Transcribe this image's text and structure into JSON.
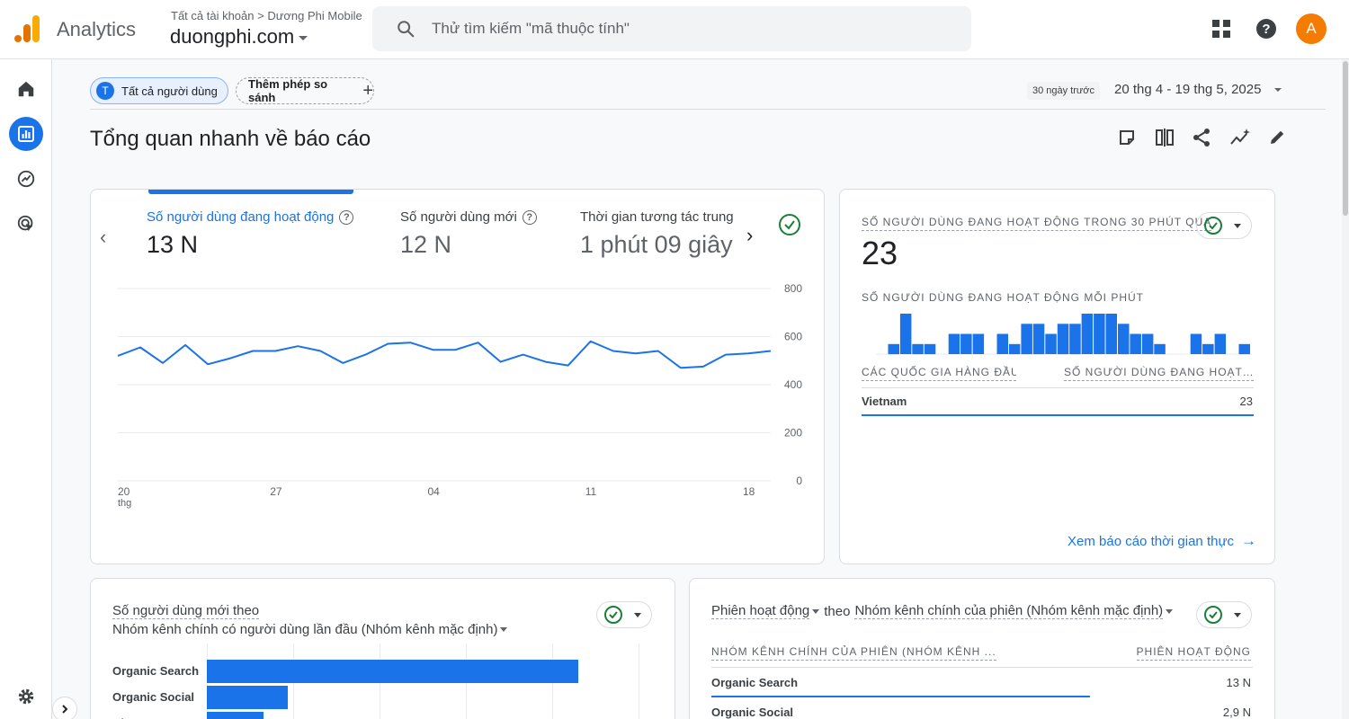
{
  "app": {
    "brand": "Analytics",
    "breadcrumb": "Tất cả tài khoản > Dương Phi Mobile",
    "property": "duongphi.com",
    "search_placeholder": "Thử tìm kiếm \"mã thuộc tính\"",
    "avatar_letter": "A",
    "accent": "#1a73e8",
    "icons": [
      "analytics-logo-icon",
      "search-icon",
      "apps-grid-icon",
      "help-icon"
    ]
  },
  "rail": {
    "items": [
      "home-icon",
      "reports-icon",
      "explore-icon",
      "advertising-icon",
      "settings-icon"
    ],
    "active": "reports-icon"
  },
  "filters": {
    "segment_letter": "T",
    "segment_label": "Tất cả người dùng",
    "compare_label": "Thêm phép so sánh",
    "date_badge": "30 ngày trước",
    "date_range": "20 thg 4 - 19 thg 5, 2025"
  },
  "page": {
    "title": "Tổng quan nhanh về báo cáo",
    "tools": [
      "edit-comparison-icon",
      "compare-columns-icon",
      "share-icon",
      "insights-icon",
      "pencil-icon"
    ]
  },
  "overview": {
    "metrics": [
      {
        "label": "Số người dùng đang hoạt động",
        "value": "13 N",
        "active": true
      },
      {
        "label": "Số người dùng mới",
        "value": "12 N",
        "active": false
      },
      {
        "label": "Thời gian tương tác trung",
        "value": "1 phút 09 giây",
        "active": false
      }
    ]
  },
  "chart_data": [
    {
      "type": "line",
      "x_ticks": [
        "20",
        "27",
        "04",
        "11",
        "18"
      ],
      "x_tick_sub": "thg",
      "y_ticks": [
        "800",
        "600",
        "400",
        "200",
        "0"
      ],
      "ylim": [
        0,
        800
      ],
      "grid": true,
      "series": [
        {
          "values": [
            520,
            555,
            490,
            565,
            485,
            510,
            540,
            540,
            560,
            540,
            490,
            525,
            570,
            575,
            545,
            545,
            575,
            495,
            525,
            495,
            480,
            580,
            540,
            530,
            540,
            470,
            475,
            525,
            530,
            540
          ],
          "color": "#1a73e8"
        }
      ]
    },
    {
      "type": "bar",
      "title": "SỐ NGƯỜI DÙNG ĐANG HOẠT ĐỘNG MỖI PHÚT",
      "values": [
        0,
        1,
        4,
        1,
        1,
        0,
        2,
        2,
        2,
        0,
        2,
        1,
        3,
        3,
        2,
        3,
        3,
        4,
        4,
        4,
        3,
        2,
        2,
        1,
        0,
        0,
        2,
        1,
        2,
        0,
        1
      ],
      "ylim": [
        0,
        4
      ],
      "color": "#1a73e8"
    },
    {
      "type": "bar",
      "orientation": "horizontal",
      "categories": [
        "Organic Search",
        "Organic Social",
        "Direct"
      ],
      "values": [
        9200,
        2000,
        1400
      ],
      "color": "#1a73e8"
    }
  ],
  "realtime": {
    "title": "SỐ NGƯỜI DÙNG ĐANG HOẠT ĐỘNG TRONG 30 PHÚT QUA",
    "value": "23",
    "sub_title": "SỐ NGƯỜI DÙNG ĐANG HOẠT ĐỘNG MỖI PHÚT",
    "col_country": "CÁC QUỐC GIA HÀNG ĐẦU",
    "col_users": "SỐ NGƯỜI DÙNG ĐANG HOẠT ĐỘNG",
    "rows": [
      {
        "country": "Vietnam",
        "users": "23",
        "fraction": 1.0
      }
    ],
    "link": "Xem báo cáo thời gian thực"
  },
  "new_users": {
    "line1": "Số người dùng mới theo",
    "line2": "Nhóm kênh chính có người dùng lần đầu (Nhóm kênh mặc định)"
  },
  "sessions": {
    "metric": "Phiên hoạt động",
    "by": "theo",
    "dimension": "Nhóm kênh chính của phiên (Nhóm kênh mặc định)",
    "col_left": "NHÓM KÊNH CHÍNH CỦA PHIÊN (NHÓM KÊNH ...",
    "col_right": "PHIÊN HOẠT ĐỘNG",
    "rows": [
      {
        "label": "Organic Search",
        "value": "13 N",
        "fraction": 0.7
      },
      {
        "label": "Organic Social",
        "value": "2,9 N",
        "fraction": 0.16
      }
    ]
  }
}
